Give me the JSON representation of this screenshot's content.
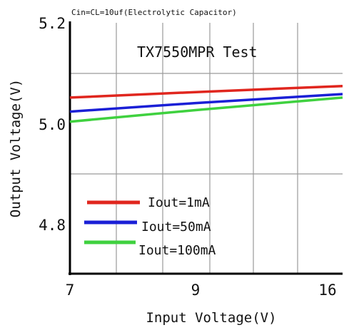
{
  "chart_data": {
    "type": "line",
    "subtitle": "Cin=CL=10uf(Electrolytic Capacitor)",
    "title": "TX7550MPR Test",
    "xlabel": "Input Voltage(V)",
    "ylabel": "Output Voltage(V)",
    "x_tick_labels": [
      "7",
      "9",
      "16"
    ],
    "y_tick_labels": [
      "5.2",
      "5.0",
      "4.8"
    ],
    "ylim": [
      4.7,
      5.2
    ],
    "grid": true,
    "legend_position": "bottom-left",
    "series": [
      {
        "name": "Iout=1mA",
        "color": "#e0261e",
        "values": [
          5.051,
          5.062,
          5.074
        ]
      },
      {
        "name": "Iout=50mA",
        "color": "#1a1fd6",
        "values": [
          5.023,
          5.04,
          5.058
        ]
      },
      {
        "name": "Iout=100mA",
        "color": "#3fd13f",
        "values": [
          5.003,
          5.026,
          5.051
        ]
      }
    ]
  }
}
